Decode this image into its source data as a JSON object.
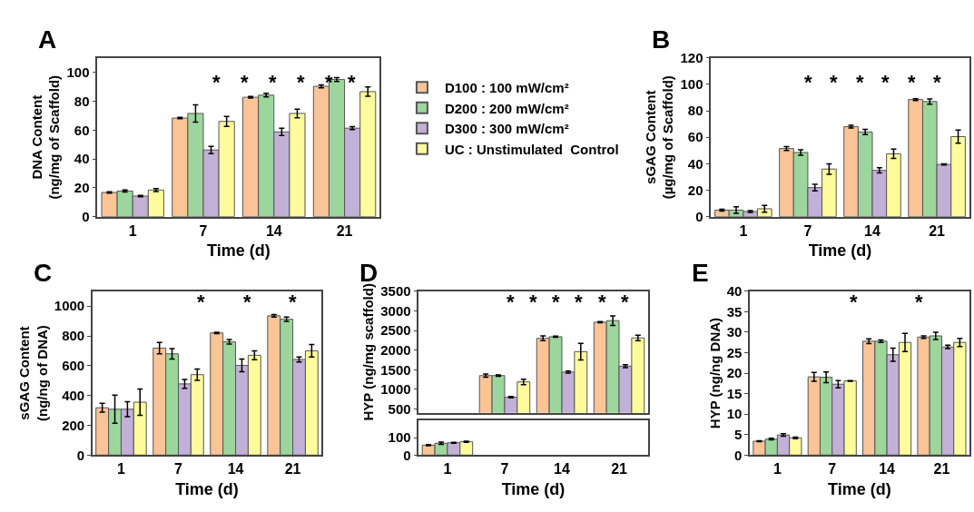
{
  "chart_data": [
    {
      "type": "bar",
      "title": "A",
      "xlabel": "Time (d)",
      "ylabel": "DNA Content\n(ng/mg of Scaffold)",
      "categories": [
        "1",
        "7",
        "14",
        "21"
      ],
      "ylim": [
        0,
        110
      ],
      "yticks": [
        0,
        20,
        40,
        60,
        80,
        100
      ],
      "legend": "right",
      "series": [
        {
          "name": "D100 : 100 mW/cm²",
          "color": "#fac497",
          "values": [
            16.8,
            68.3,
            82.7,
            90.3
          ],
          "errors": [
            0.5,
            0.5,
            0.5,
            1
          ]
        },
        {
          "name": "D200 : 200 mW/cm²",
          "color": "#9dd69d",
          "values": [
            17.8,
            71.5,
            84.2,
            95
          ],
          "errors": [
            0.7,
            6,
            1.3,
            1.3
          ]
        },
        {
          "name": "D300 : 300 mW/cm²",
          "color": "#c2b0d6",
          "values": [
            14.3,
            46.2,
            58.7,
            61.3
          ],
          "errors": [
            0.5,
            2.5,
            2.5,
            1
          ]
        },
        {
          "name": "UC : Unstimulated  Control",
          "color": "#fcfc9c",
          "values": [
            18.5,
            66,
            71.5,
            86.6
          ],
          "errors": [
            1,
            3.5,
            3,
            3.2
          ]
        }
      ],
      "annotations": [
        "*",
        "*",
        "*",
        "*",
        "*",
        "*"
      ]
    },
    {
      "type": "bar",
      "title": "B",
      "xlabel": "Time (d)",
      "ylabel": "sGAG Content\n(µg/mg of Scaffold)",
      "categories": [
        "1",
        "7",
        "14",
        "21"
      ],
      "ylim": [
        0,
        120
      ],
      "yticks": [
        0,
        20,
        40,
        60,
        80,
        100,
        120
      ],
      "series": [
        {
          "color": "#fac497",
          "values": [
            5,
            51.5,
            68,
            88.5
          ],
          "errors": [
            0.7,
            1.5,
            1,
            0.7
          ]
        },
        {
          "color": "#9dd69d",
          "values": [
            5,
            48.5,
            64,
            87
          ],
          "errors": [
            2.5,
            2,
            2,
            2
          ]
        },
        {
          "color": "#c2b0d6",
          "values": [
            4,
            22,
            35,
            39.5
          ],
          "errors": [
            0.7,
            2.5,
            2,
            0.5
          ]
        },
        {
          "color": "#fcfc9c",
          "values": [
            6,
            36,
            47.5,
            60.5
          ],
          "errors": [
            2.5,
            4,
            3.5,
            5
          ]
        }
      ],
      "annotations": [
        "*",
        "*",
        "*",
        "*",
        "*",
        "*"
      ]
    },
    {
      "type": "bar",
      "title": "C",
      "xlabel": "Time (d)",
      "ylabel": "sGAG Content\n(ng/ng of DNA)",
      "categories": [
        "1",
        "7",
        "14",
        "21"
      ],
      "ylim": [
        0,
        1100
      ],
      "yticks": [
        0,
        200,
        400,
        600,
        800,
        1000
      ],
      "series": [
        {
          "color": "#fac497",
          "values": [
            318,
            718,
            820,
            935
          ],
          "errors": [
            30,
            38,
            5,
            8
          ]
        },
        {
          "color": "#9dd69d",
          "values": [
            308,
            680,
            760,
            912
          ],
          "errors": [
            95,
            35,
            15,
            15
          ]
        },
        {
          "color": "#c2b0d6",
          "values": [
            308,
            478,
            602,
            642
          ],
          "errors": [
            50,
            30,
            43,
            17
          ]
        },
        {
          "color": "#fcfc9c",
          "values": [
            355,
            540,
            670,
            700
          ],
          "errors": [
            88,
            38,
            30,
            42
          ]
        }
      ],
      "annotations": [
        "*",
        "*",
        "*"
      ]
    },
    {
      "type": "bar",
      "title": "D",
      "ylabel": "HYP (ng/mg scaffold)",
      "categories": [
        "1",
        "7",
        "14",
        "21"
      ],
      "ylim": [
        400,
        3500
      ],
      "yticks": [
        500,
        1000,
        1500,
        2000,
        2500,
        3000,
        3500
      ],
      "tick_labels": "y",
      "series": [
        {
          "color": "#fac497",
          "values": [
            null,
            1350,
            2300,
            2710
          ],
          "errors": [
            null,
            40,
            60,
            15
          ]
        },
        {
          "color": "#9dd69d",
          "values": [
            null,
            1350,
            2340,
            2750
          ],
          "errors": [
            null,
            15,
            15,
            120
          ]
        },
        {
          "color": "#c2b0d6",
          "values": [
            null,
            800,
            1440,
            1590
          ],
          "errors": [
            null,
            15,
            25,
            40
          ]
        },
        {
          "color": "#fcfc9c",
          "values": [
            null,
            1190,
            1960,
            2310
          ],
          "errors": [
            null,
            70,
            210,
            70
          ]
        }
      ],
      "annotations": [
        "*",
        "*",
        "*",
        "*",
        "*",
        "*"
      ]
    },
    {
      "type": "bar",
      "xlabel": "Time (d)",
      "categories": [
        "1",
        "7",
        "14",
        "21"
      ],
      "ylim": [
        0,
        200
      ],
      "yticks": [
        0,
        100
      ],
      "series": [
        {
          "color": "#fac497",
          "values": [
            57,
            null,
            null,
            null
          ],
          "errors": [
            3,
            null,
            null,
            null
          ]
        },
        {
          "color": "#9dd69d",
          "values": [
            68,
            null,
            null,
            null
          ],
          "errors": [
            7,
            null,
            null,
            null
          ]
        },
        {
          "color": "#c2b0d6",
          "values": [
            71,
            null,
            null,
            null
          ],
          "errors": [
            3,
            null,
            null,
            null
          ]
        },
        {
          "color": "#fcfc9c",
          "values": [
            77,
            null,
            null,
            null
          ],
          "errors": [
            3,
            null,
            null,
            null
          ]
        }
      ]
    },
    {
      "type": "bar",
      "title": "E",
      "xlabel": "Time (d)",
      "ylabel": "HYP (ng/ng DNA)",
      "categories": [
        "1",
        "7",
        "14",
        "21"
      ],
      "ylim": [
        0,
        40
      ],
      "yticks": [
        0,
        5,
        10,
        15,
        20,
        25,
        30,
        35,
        40
      ],
      "series": [
        {
          "color": "#fac497",
          "values": [
            3.4,
            19.1,
            27.8,
            28.8
          ],
          "errors": [
            0.1,
            1.1,
            0.6,
            0.3
          ]
        },
        {
          "color": "#9dd69d",
          "values": [
            3.9,
            19,
            27.8,
            29.1
          ],
          "errors": [
            0.2,
            1.3,
            0.3,
            0.9
          ]
        },
        {
          "color": "#c2b0d6",
          "values": [
            4.9,
            17.3,
            24.5,
            26.4
          ],
          "errors": [
            0.3,
            0.9,
            1.6,
            0.4
          ]
        },
        {
          "color": "#fcfc9c",
          "values": [
            4.2,
            18.1,
            27.5,
            27.5
          ],
          "errors": [
            0.2,
            0.1,
            2.2,
            1
          ]
        }
      ],
      "annotations": [
        "*",
        "*"
      ]
    }
  ]
}
